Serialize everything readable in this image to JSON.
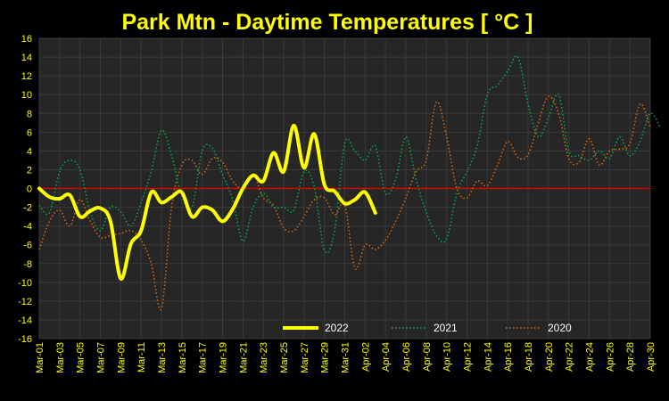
{
  "chart_data": {
    "type": "line",
    "title": "Park Mtn - Daytime Temperatures [ °C ]",
    "xlabel": "",
    "ylabel": "",
    "ylim": [
      -16,
      16
    ],
    "yticks": [
      16,
      14,
      12,
      10,
      8,
      6,
      4,
      2,
      0,
      -2,
      -4,
      -6,
      -8,
      -10,
      -12,
      -14,
      -16
    ],
    "x_tick_labels": [
      "Mar-01",
      "Mar-03",
      "Mar-05",
      "Mar-07",
      "Mar-09",
      "Mar-11",
      "Mar-13",
      "Mar-15",
      "Mar-17",
      "Mar-19",
      "Mar-21",
      "Mar-23",
      "Mar-25",
      "Mar-27",
      "Mar-29",
      "Mar-31",
      "Apr-02",
      "Apr-04",
      "Apr-06",
      "Apr-08",
      "Apr-10",
      "Apr-12",
      "Apr-14",
      "Apr-16",
      "Apr-18",
      "Apr-20",
      "Apr-22",
      "Apr-24",
      "Apr-26",
      "Apr-28",
      "Apr-30"
    ],
    "grid": true,
    "legend": "bottom",
    "zero_line_color": "#cc0000",
    "plot_background": "#262626",
    "title_color": "#ffff00",
    "tick_color": "#ffff00",
    "legend_text_color": "#ffffff",
    "series": [
      {
        "name": "2022",
        "color": "#ffff00",
        "style": "solid",
        "values": [
          0,
          -0.9,
          -1.1,
          -0.7,
          -3.0,
          -2.4,
          -2.1,
          -3.5,
          -9.6,
          -5.9,
          -4.5,
          -0.4,
          -1.5,
          -0.9,
          -0.4,
          -3.0,
          -2.0,
          -2.3,
          -3.5,
          -2.2,
          0.0,
          1.4,
          0.8,
          3.8,
          1.8,
          6.7,
          2.2,
          5.8,
          0.4,
          -0.3,
          -1.6,
          -1.2,
          -0.4,
          -2.6
        ]
      },
      {
        "name": "2021",
        "color": "#00b050",
        "style": "dotted",
        "values": [
          -1.8,
          -2.6,
          1.8,
          3.0,
          2.0,
          -2.5,
          -4.5,
          -2.0,
          -2.5,
          -4.0,
          -1.5,
          1.8,
          6.2,
          3.5,
          -0.8,
          -2.0,
          4.0,
          4.3,
          1.5,
          -1.2,
          -5.6,
          -2.0,
          -0.5,
          -2.0,
          -2.0,
          -2.3,
          1.8,
          0.2,
          -6.6,
          -4.5,
          4.8,
          4.0,
          3.0,
          4.5,
          -0.5,
          1.0,
          5.5,
          1.0,
          -2.5,
          -5.0,
          -5.4,
          -0.5,
          1.8,
          4.5,
          10.0,
          11.0,
          12.5,
          14.0,
          9.0,
          5.5,
          7.5,
          10.0,
          4.0,
          3.5,
          3.0,
          4.0,
          3.2,
          5.5,
          3.5,
          5.0,
          8.0,
          6.5
        ]
      },
      {
        "name": "2020",
        "color": "#e26b0a",
        "style": "dotted",
        "values": [
          -6.5,
          -3.5,
          -2.3,
          -4.0,
          -1.2,
          -3.5,
          -5.2,
          -5.0,
          -4.8,
          -4.5,
          -5.5,
          -8.0,
          -12.8,
          -2.0,
          2.5,
          3.0,
          1.5,
          3.2,
          2.8,
          0.8,
          0.0,
          1.5,
          -1.0,
          -1.8,
          -4.2,
          -4.5,
          -3.0,
          -1.2,
          -1.0,
          -2.8,
          -1.8,
          -8.5,
          -6.0,
          -6.5,
          -5.5,
          -3.5,
          -1.0,
          1.8,
          3.0,
          9.2,
          5.5,
          0.0,
          -1.0,
          0.8,
          0.3,
          2.5,
          5.0,
          3.3,
          3.6,
          7.0,
          9.8,
          8.0,
          3.2,
          2.8,
          5.3,
          2.5,
          4.0,
          4.2,
          4.8,
          9.0,
          6.5
        ]
      }
    ]
  }
}
